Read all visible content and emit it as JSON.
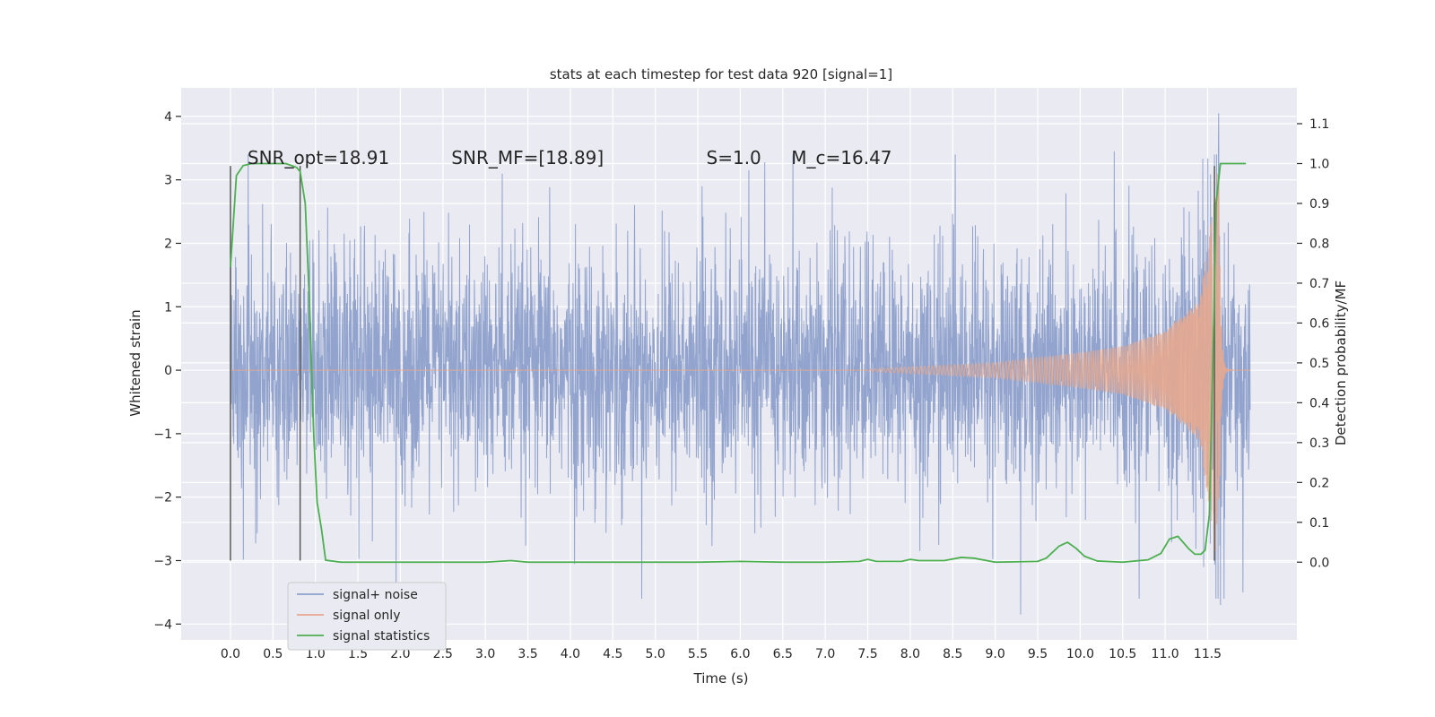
{
  "chart_data": {
    "type": "line",
    "title": "stats at each timestep for test data 920 [signal=1]",
    "xlabel": "Time (s)",
    "ylabel_left": "Whitened strain",
    "ylabel_right": "Detection probability/MF",
    "xlim": [
      -0.58,
      12.55
    ],
    "ylim_left": [
      -4.25,
      4.45
    ],
    "ylim_right": [
      -0.195,
      1.19
    ],
    "x_ticks": [
      0.0,
      0.5,
      1.0,
      1.5,
      2.0,
      2.5,
      3.0,
      3.5,
      4.0,
      4.5,
      5.0,
      5.5,
      6.0,
      6.5,
      7.0,
      7.5,
      8.0,
      8.5,
      9.0,
      9.5,
      10.0,
      10.5,
      11.0,
      11.5
    ],
    "x_tick_labels": [
      "0.0",
      "0.5",
      "1.0",
      "1.5",
      "2.0",
      "2.5",
      "3.0",
      "3.5",
      "4.0",
      "4.5",
      "5.0",
      "5.5",
      "6.0",
      "6.5",
      "7.0",
      "7.5",
      "8.0",
      "8.5",
      "9.0",
      "9.5",
      "10.0",
      "10.5",
      "11.0",
      "11.5"
    ],
    "y_left_ticks": [
      -4,
      -3,
      -2,
      -1,
      0,
      1,
      2,
      3,
      4
    ],
    "y_left_tick_labels": [
      "−4",
      "−3",
      "−2",
      "−1",
      "0",
      "1",
      "2",
      "3",
      "4"
    ],
    "y_right_ticks": [
      0.0,
      0.1,
      0.2,
      0.3,
      0.4,
      0.5,
      0.6,
      0.7,
      0.8,
      0.9,
      1.0,
      1.1
    ],
    "y_right_tick_labels": [
      "0.0",
      "0.1",
      "0.2",
      "0.3",
      "0.4",
      "0.5",
      "0.6",
      "0.7",
      "0.8",
      "0.9",
      "1.0",
      "1.1"
    ],
    "grid": true,
    "legend_position": "lower-left",
    "annotations": [
      {
        "text": "SNR_opt=18.91",
        "x": 0.2,
        "y": 3.25
      },
      {
        "text": "SNR_MF=[18.89]",
        "x": 2.6,
        "y": 3.25
      },
      {
        "text": "S=1.0",
        "x": 5.6,
        "y": 3.25
      },
      {
        "text": "M_c=16.47",
        "x": 6.6,
        "y": 3.25
      }
    ],
    "vertical_markers": [
      {
        "x": 0.0,
        "y_range": [
          -3.0,
          3.22
        ]
      },
      {
        "x": 0.82,
        "y_range": [
          -3.0,
          3.22
        ]
      },
      {
        "x": 11.58,
        "y_range": [
          -3.0,
          3.22
        ]
      }
    ],
    "series": [
      {
        "name": "signal+ noise",
        "axis": "left",
        "color": "#8da0cb",
        "x_range": [
          0.0,
          12.0
        ],
        "envelope_typical": [
          -1.4,
          1.4
        ],
        "peak_extremes": [
          {
            "x": 1.95,
            "y": -3.4
          },
          {
            "x": 3.2,
            "y": 3.1
          },
          {
            "x": 5.55,
            "y": 2.9
          },
          {
            "x": 9.3,
            "y": -3.85
          },
          {
            "x": 10.4,
            "y": 3.45
          },
          {
            "x": 11.63,
            "y": 4.05
          },
          {
            "x": 11.65,
            "y": -3.7
          }
        ]
      },
      {
        "name": "signal only",
        "axis": "left",
        "color": "#e5a88f",
        "x_range": [
          0.0,
          12.0
        ],
        "chirp_peak_time": 11.63,
        "amplitude_growth": [
          {
            "x": 7.5,
            "y": 0.02
          },
          {
            "x": 9.0,
            "y": 0.12
          },
          {
            "x": 10.0,
            "y": 0.28
          },
          {
            "x": 10.5,
            "y": 0.38
          },
          {
            "x": 11.0,
            "y": 0.62
          },
          {
            "x": 11.4,
            "y": 1.1
          },
          {
            "x": 11.6,
            "y": 2.9
          },
          {
            "x": 11.65,
            "y": -3.65
          }
        ]
      },
      {
        "name": "signal statistics",
        "axis": "right",
        "color": "#4caf50",
        "x": [
          0.0,
          0.07,
          0.15,
          0.25,
          0.4,
          0.55,
          0.65,
          0.72,
          0.78,
          0.82,
          0.88,
          0.93,
          0.98,
          1.02,
          1.07,
          1.12,
          1.3,
          2.0,
          3.0,
          3.3,
          3.5,
          4.5,
          5.5,
          6.0,
          6.5,
          7.0,
          7.4,
          7.5,
          7.6,
          7.9,
          8.0,
          8.1,
          8.4,
          8.6,
          8.75,
          9.0,
          9.5,
          9.6,
          9.75,
          9.85,
          9.95,
          10.05,
          10.2,
          10.5,
          10.8,
          10.95,
          11.05,
          11.15,
          11.28,
          11.35,
          11.42,
          11.47,
          11.52,
          11.56,
          11.6,
          11.65,
          11.75,
          11.95
        ],
        "y": [
          0.74,
          0.97,
          0.995,
          1.0,
          1.0,
          1.0,
          1.0,
          0.995,
          0.99,
          0.98,
          0.9,
          0.65,
          0.32,
          0.15,
          0.085,
          0.005,
          0.0,
          0.0,
          0.0,
          0.004,
          0.0,
          0.0,
          0.0,
          0.002,
          0.0,
          0.0,
          0.002,
          0.007,
          0.002,
          0.002,
          0.007,
          0.004,
          0.004,
          0.012,
          0.01,
          0.0,
          0.002,
          0.01,
          0.04,
          0.05,
          0.035,
          0.015,
          0.003,
          0.0,
          0.006,
          0.022,
          0.058,
          0.065,
          0.033,
          0.02,
          0.02,
          0.03,
          0.12,
          0.5,
          0.9,
          1.0,
          1.0,
          1.0
        ]
      }
    ]
  }
}
